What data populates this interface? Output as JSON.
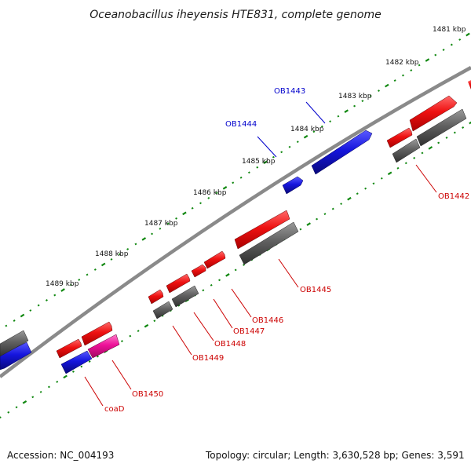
{
  "title": "Oceanobacillus iheyensis HTE831, complete genome",
  "colors": {
    "forward_gene": "#ee1111",
    "reverse_gene": "#1515dd",
    "highlight_gene": "#ee1199",
    "cds_track": "#606060",
    "backbone": "#8a8a8a",
    "ticks": "#118811",
    "forward_label": "#cc0000",
    "reverse_label": "#0000cc"
  },
  "ruler": {
    "kbp_labels": [
      "1481 kbp",
      "1482 kbp",
      "1483 kbp",
      "1484 kbp",
      "1485 kbp",
      "1486 kbp",
      "1487 kbp",
      "1488 kbp",
      "1489 kbp"
    ]
  },
  "genes": {
    "reverse_strand": [
      "OB1443",
      "OB1444"
    ],
    "forward_strand": [
      "OB1442",
      "OB1445",
      "OB1446",
      "OB1447",
      "OB1448",
      "OB1449",
      "OB1450",
      "coaD"
    ]
  },
  "footer": {
    "accession": "Accession: NC_004193",
    "summary": "Topology: circular; Length: 3,630,528 bp; Genes: 3,591"
  }
}
